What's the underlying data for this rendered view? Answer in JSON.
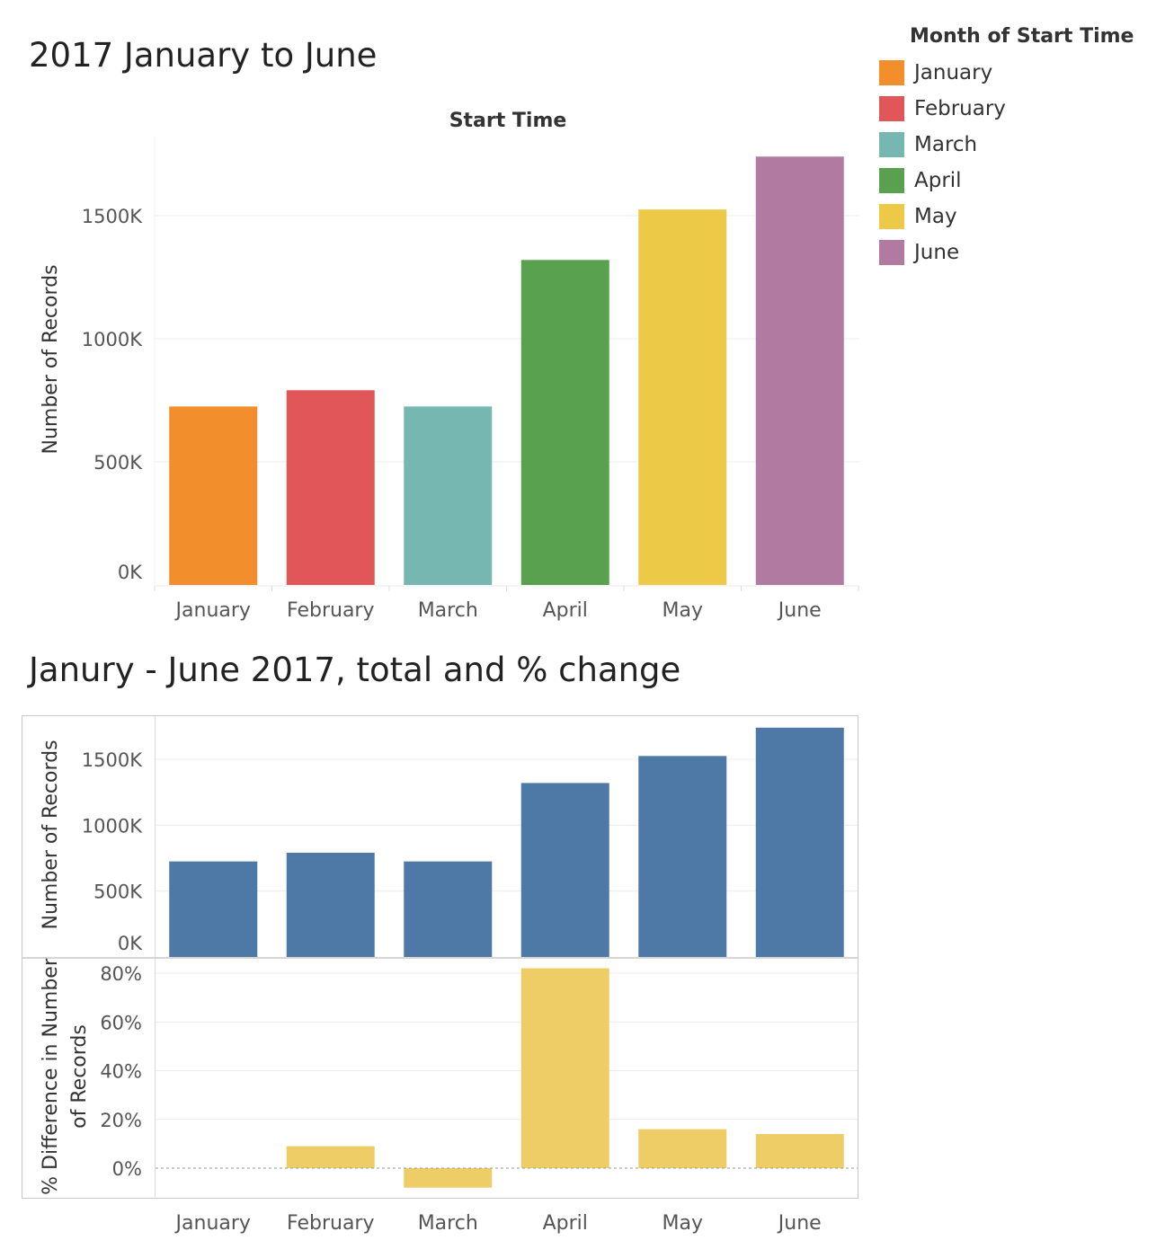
{
  "legend": {
    "title": "Month of Start Time",
    "items": [
      {
        "label": "January",
        "color": "#f28e2b"
      },
      {
        "label": "February",
        "color": "#e15759"
      },
      {
        "label": "March",
        "color": "#76b7b2"
      },
      {
        "label": "April",
        "color": "#59a14f"
      },
      {
        "label": "May",
        "color": "#edc948"
      },
      {
        "label": "June",
        "color": "#b07aa1"
      }
    ]
  },
  "chart_data": [
    {
      "type": "bar",
      "title": "2017 January to June",
      "subtitle": "Start Time",
      "categories": [
        "January",
        "February",
        "March",
        "April",
        "May",
        "June"
      ],
      "values": [
        725000,
        791000,
        725000,
        1320000,
        1525000,
        1740000
      ],
      "colors": [
        "#f28e2b",
        "#e15759",
        "#76b7b2",
        "#59a14f",
        "#edc948",
        "#b07aa1"
      ],
      "ylabel": "Number of Records",
      "yticks": [
        0,
        500000,
        1000000,
        1500000
      ],
      "ytick_labels": [
        "0K",
        "500K",
        "1000K",
        "1500K"
      ],
      "grid": true
    },
    {
      "type": "bar",
      "title": "Janury - June 2017, total and % change",
      "ylabel": "Number of Records",
      "categories": [
        "January",
        "February",
        "March",
        "April",
        "May",
        "June"
      ],
      "values": [
        725000,
        791000,
        725000,
        1320000,
        1525000,
        1740000
      ],
      "color": "#4e79a7",
      "yticks": [
        0,
        500000,
        1000000,
        1500000
      ],
      "ytick_labels": [
        "0K",
        "500K",
        "1000K",
        "1500K"
      ],
      "grid": true
    },
    {
      "type": "bar",
      "ylabel": "% Difference in Number of Records",
      "ylabel_lines": [
        "% Difference in Number",
        "of Records"
      ],
      "categories": [
        "January",
        "February",
        "March",
        "April",
        "May",
        "June"
      ],
      "values": [
        null,
        9,
        -8,
        82,
        16,
        14
      ],
      "color": "#efcd66",
      "yticks": [
        0,
        20,
        40,
        60,
        80
      ],
      "ytick_labels": [
        "0%",
        "20%",
        "40%",
        "60%",
        "80%"
      ],
      "grid": true
    }
  ]
}
